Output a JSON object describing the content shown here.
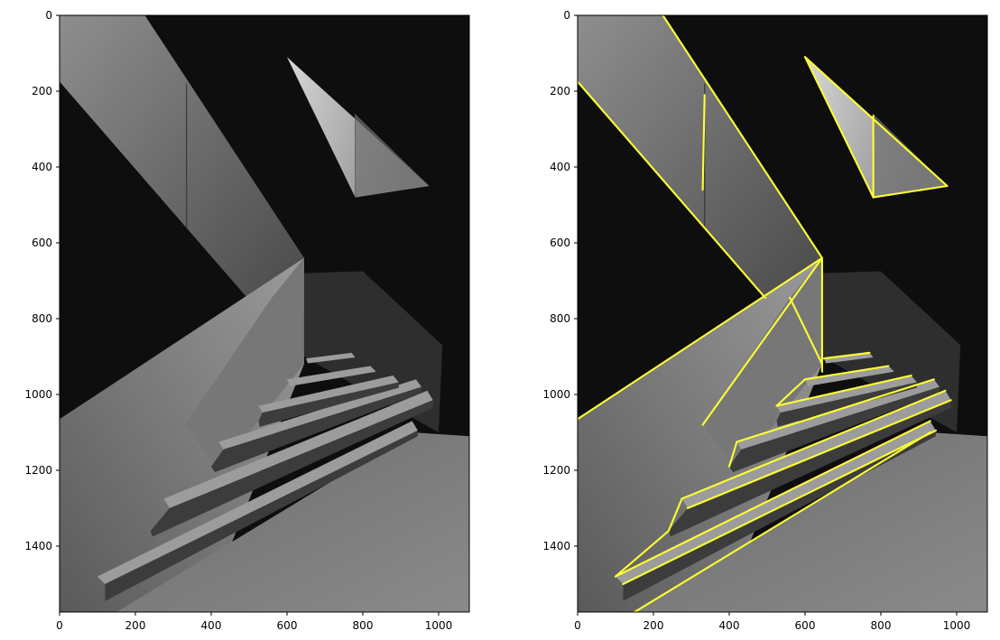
{
  "figure": {
    "background": "#ffffff",
    "overlay_color": "#ffff33",
    "panels": [
      {
        "name": "left-panel",
        "overlay": false,
        "xticks": [
          "0",
          "200",
          "400",
          "600",
          "800",
          "1000"
        ],
        "yticks": [
          "0",
          "200",
          "400",
          "600",
          "800",
          "1000",
          "1200",
          "1400"
        ]
      },
      {
        "name": "right-panel",
        "overlay": true,
        "xticks": [
          "0",
          "200",
          "400",
          "600",
          "800",
          "1000"
        ],
        "yticks": [
          "0",
          "200",
          "400",
          "600",
          "800",
          "1000",
          "1200",
          "1400"
        ]
      }
    ]
  }
}
